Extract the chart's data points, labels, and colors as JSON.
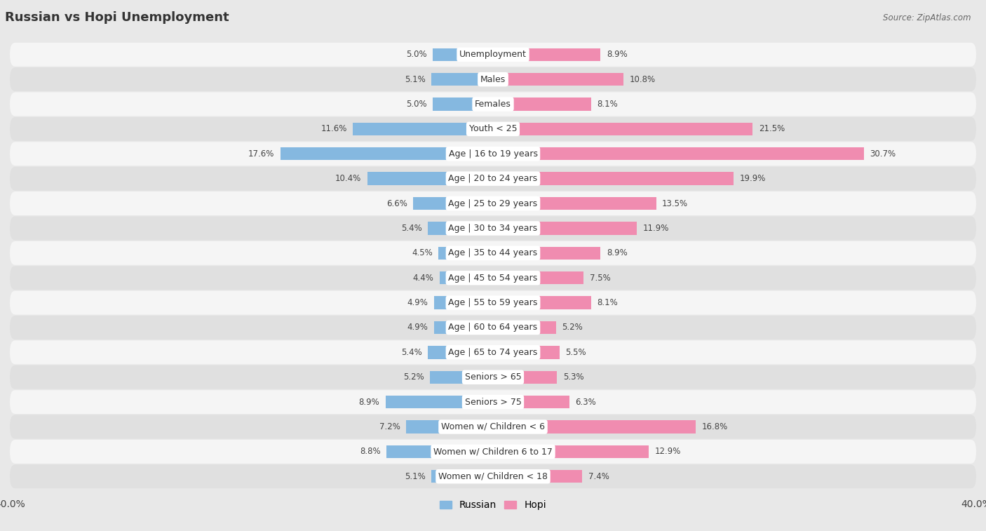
{
  "title": "Russian vs Hopi Unemployment",
  "source": "Source: ZipAtlas.com",
  "categories": [
    "Unemployment",
    "Males",
    "Females",
    "Youth < 25",
    "Age | 16 to 19 years",
    "Age | 20 to 24 years",
    "Age | 25 to 29 years",
    "Age | 30 to 34 years",
    "Age | 35 to 44 years",
    "Age | 45 to 54 years",
    "Age | 55 to 59 years",
    "Age | 60 to 64 years",
    "Age | 65 to 74 years",
    "Seniors > 65",
    "Seniors > 75",
    "Women w/ Children < 6",
    "Women w/ Children 6 to 17",
    "Women w/ Children < 18"
  ],
  "russian_values": [
    5.0,
    5.1,
    5.0,
    11.6,
    17.6,
    10.4,
    6.6,
    5.4,
    4.5,
    4.4,
    4.9,
    4.9,
    5.4,
    5.2,
    8.9,
    7.2,
    8.8,
    5.1
  ],
  "hopi_values": [
    8.9,
    10.8,
    8.1,
    21.5,
    30.7,
    19.9,
    13.5,
    11.9,
    8.9,
    7.5,
    8.1,
    5.2,
    5.5,
    5.3,
    6.3,
    16.8,
    12.9,
    7.4
  ],
  "russian_color": "#85b8e0",
  "hopi_color": "#f08cb0",
  "axis_max": 40.0,
  "background_color": "#e8e8e8",
  "row_bg_light": "#f5f5f5",
  "row_bg_dark": "#e0e0e0",
  "title_fontsize": 13,
  "label_fontsize": 9,
  "value_fontsize": 8.5,
  "bar_height": 0.52,
  "legend_label_russian": "Russian",
  "legend_label_hopi": "Hopi"
}
